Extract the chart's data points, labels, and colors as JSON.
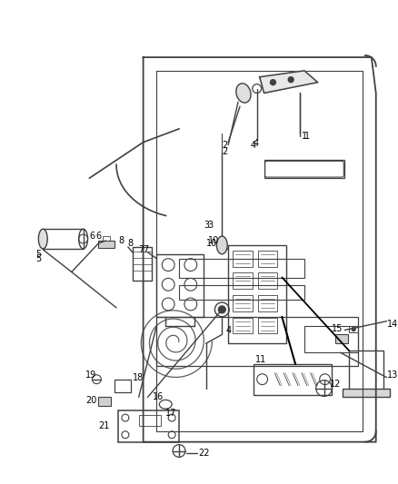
{
  "bg_color": "#ffffff",
  "line_color": "#404040",
  "text_color": "#000000",
  "fig_width": 4.38,
  "fig_height": 5.33,
  "dpi": 100
}
